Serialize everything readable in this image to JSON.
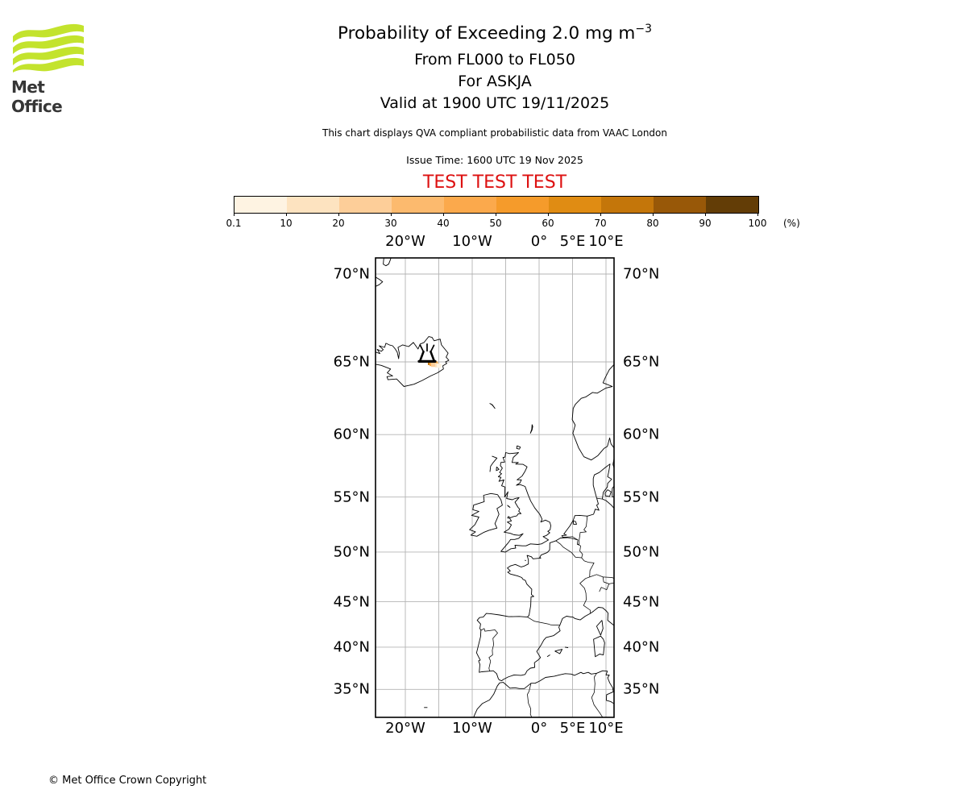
{
  "header": {
    "logo_text": "Met Office",
    "logo_green": "#c3e32d",
    "title_main": "Probability of Exceeding 2.0 mg m",
    "title_sup": "−3",
    "subtitle1": "From FL000 to FL050",
    "subtitle2": "For ASKJA",
    "subtitle3": "Valid at 1900 UTC 19/11/2025",
    "note": "This chart displays QVA compliant probabilistic data from VAAC London",
    "issue_time": "Issue Time: 1600 UTC 19 Nov 2025",
    "test_banner": "TEST TEST TEST",
    "test_color": "#dd1111"
  },
  "colorbar": {
    "ticks": [
      "0.1",
      "10",
      "20",
      "30",
      "40",
      "50",
      "60",
      "70",
      "80",
      "90",
      "100"
    ],
    "unit": "(%)",
    "colors": [
      "#fef3e2",
      "#fde3c0",
      "#fdce99",
      "#fcba6e",
      "#fba94c",
      "#f59b2b",
      "#e08c13",
      "#c4760a",
      "#985808",
      "#633d06"
    ]
  },
  "map": {
    "grid_color": "#b4b4b4",
    "top_labels": [
      {
        "text": "20°W",
        "lon": -20
      },
      {
        "text": "10°W",
        "lon": -10
      },
      {
        "text": "0°",
        "lon": 0
      },
      {
        "text": "5°E",
        "lon": 5
      },
      {
        "text": "10°E",
        "lon": 10
      }
    ],
    "bottom_labels": [
      {
        "text": "20°W",
        "lon": -20
      },
      {
        "text": "10°W",
        "lon": -10
      },
      {
        "text": "0°",
        "lon": 0
      },
      {
        "text": "5°E",
        "lon": 5
      },
      {
        "text": "10°E",
        "lon": 10
      }
    ],
    "left_labels": [
      {
        "text": "70°N",
        "lat": 70
      },
      {
        "text": "65°N",
        "lat": 65
      },
      {
        "text": "60°N",
        "lat": 60
      },
      {
        "text": "55°N",
        "lat": 55
      },
      {
        "text": "50°N",
        "lat": 50
      },
      {
        "text": "45°N",
        "lat": 45
      },
      {
        "text": "40°N",
        "lat": 40
      },
      {
        "text": "35°N",
        "lat": 35
      }
    ],
    "right_labels": [
      {
        "text": "70°N",
        "lat": 70
      },
      {
        "text": "65°N",
        "lat": 65
      },
      {
        "text": "60°N",
        "lat": 60
      },
      {
        "text": "55°N",
        "lat": 55
      },
      {
        "text": "50°N",
        "lat": 50
      },
      {
        "text": "45°N",
        "lat": 45
      },
      {
        "text": "40°N",
        "lat": 40
      },
      {
        "text": "35°N",
        "lat": 35
      }
    ],
    "grid_lons": [
      -20,
      -15,
      -10,
      -5,
      0,
      5,
      10
    ],
    "grid_lats": [
      35,
      40,
      45,
      50,
      55,
      60,
      65,
      70
    ]
  },
  "chart_data": {
    "type": "heatmap",
    "title": "Probability of Exceeding 2.0 mg m−3",
    "threshold": "2.0 mg m-3",
    "layer": "FL000 to FL050",
    "volcano": {
      "name": "ASKJA",
      "lon": -16.75,
      "lat": 65.03
    },
    "valid_time": "1900 UTC 19/11/2025",
    "issue_time": "1600 UTC 19 Nov 2025",
    "source": "VAAC London",
    "colorbar_bands_percent": [
      0.1,
      10,
      20,
      30,
      40,
      50,
      60,
      70,
      80,
      90,
      100
    ],
    "colorbar_unit": "%",
    "map_extent": {
      "lon_min": -24.5,
      "lon_max": 11.25,
      "lat_min": 31.5,
      "lat_max": 70.8
    },
    "projection": "mercator",
    "cells": [
      {
        "lon": -16.27,
        "lat": 64.93,
        "band_index": 7,
        "band": "70-80%"
      },
      {
        "lon": -15.54,
        "lat": 64.9,
        "band_index": 5,
        "band": "50-60%"
      },
      {
        "lon": -16.02,
        "lat": 64.86,
        "band_index": 4,
        "band": "40-50%"
      },
      {
        "lon": -15.42,
        "lat": 64.83,
        "band_index": 3,
        "band": "30-40%"
      },
      {
        "lon": -15.78,
        "lat": 64.81,
        "band_index": 2,
        "band": "20-30%"
      },
      {
        "lon": -15.18,
        "lat": 64.78,
        "band_index": 1,
        "band": "10-20%"
      },
      {
        "lon": -14.94,
        "lat": 64.75,
        "band_index": 0,
        "band": "0.1-10%"
      }
    ]
  },
  "footer": {
    "copyright": "© Met Office Crown Copyright"
  }
}
